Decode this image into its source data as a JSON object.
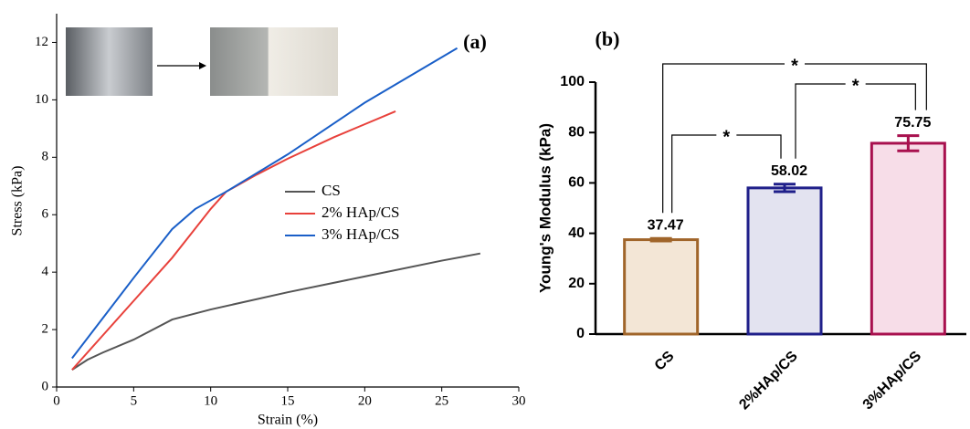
{
  "chart_data": [
    {
      "type": "line",
      "label": "(a)",
      "xlabel": "Strain (%)",
      "ylabel": "Stress (kPa)",
      "xlim": [
        0,
        30
      ],
      "ylim": [
        0,
        13
      ],
      "xticks": [
        0,
        5,
        10,
        15,
        20,
        25,
        30
      ],
      "yticks": [
        0,
        2,
        4,
        6,
        8,
        10,
        12
      ],
      "legend": "center",
      "series": [
        {
          "name": "CS",
          "color": "#555555",
          "x": [
            1,
            2,
            3,
            5,
            7.5,
            10,
            15,
            20,
            25,
            27.5
          ],
          "values": [
            0.6,
            0.95,
            1.2,
            1.65,
            2.35,
            2.7,
            3.3,
            3.85,
            4.4,
            4.65
          ]
        },
        {
          "name": "2% HAp/CS",
          "color": "#e8413b",
          "x": [
            1,
            3,
            5,
            7.5,
            10,
            11,
            13,
            15,
            18,
            20,
            22
          ],
          "values": [
            0.6,
            1.8,
            3.0,
            4.5,
            6.2,
            6.8,
            7.4,
            7.95,
            8.7,
            9.15,
            9.6
          ]
        },
        {
          "name": "3% HAp/CS",
          "color": "#1a5fc8",
          "x": [
            1,
            3,
            5,
            7.5,
            9,
            11,
            15,
            20,
            26
          ],
          "values": [
            1.0,
            2.4,
            3.8,
            5.5,
            6.2,
            6.8,
            8.1,
            9.9,
            11.8
          ]
        }
      ]
    },
    {
      "type": "bar",
      "label": "(b)",
      "ylabel": "Young's Modulus (kPa)",
      "ylim": [
        0,
        100
      ],
      "yticks": [
        0,
        20,
        40,
        60,
        80,
        100
      ],
      "categories": [
        "CS",
        "2%HAp/CS",
        "3%HAp/CS"
      ],
      "values": [
        37.47,
        58.02,
        75.75
      ],
      "errors": [
        0.5,
        1.5,
        3
      ],
      "colors": [
        "#a0652a",
        "#1f1f8a",
        "#a8104e"
      ],
      "fill_colors": [
        "#f3e6d6",
        "#e3e3f0",
        "#f7dde8"
      ],
      "significance": [
        "*",
        "*",
        "*"
      ]
    }
  ]
}
